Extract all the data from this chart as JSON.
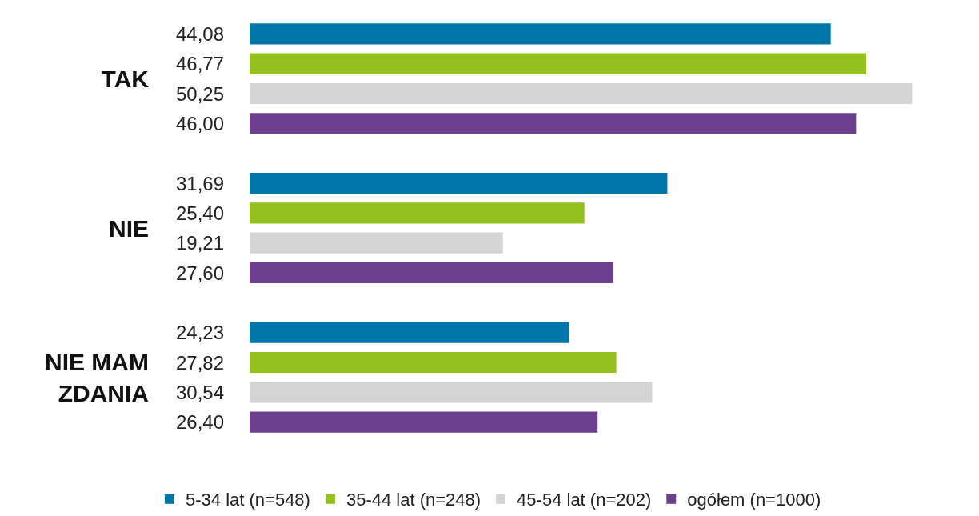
{
  "chart_data": {
    "type": "bar",
    "orientation": "horizontal",
    "categories": [
      "TAK",
      "NIE",
      "NIE MAM ZDANIA"
    ],
    "series": [
      {
        "name": "5-34 lat (n=548)",
        "color": "#0077a8",
        "values": [
          44.08,
          31.69,
          24.23
        ],
        "value_labels": [
          "44,08",
          "31,69",
          "24,23"
        ]
      },
      {
        "name": "35-44 lat (n=248)",
        "color": "#95c11f",
        "values": [
          46.77,
          25.4,
          27.82
        ],
        "value_labels": [
          "46,77",
          "25,40",
          "27,82"
        ]
      },
      {
        "name": "45-54 lat (n=202)",
        "color": "#d4d4d4",
        "values": [
          50.25,
          19.21,
          30.54
        ],
        "value_labels": [
          "50,25",
          "19,21",
          "30,54"
        ]
      },
      {
        "name": "ogółem (n=1000)",
        "color": "#6d3f8f",
        "values": [
          46.0,
          27.6,
          26.4
        ],
        "value_labels": [
          "46,00",
          "27,60",
          "26,40"
        ]
      }
    ],
    "legend": "bottom"
  }
}
